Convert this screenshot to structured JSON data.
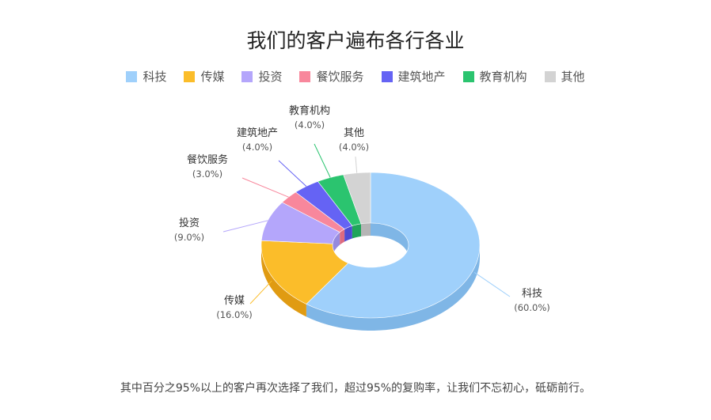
{
  "chart_data": {
    "type": "pie",
    "variant": "3d-donut",
    "title": "我们的客户遍布各行各业",
    "legend_position": "top",
    "slices": [
      {
        "label": "科技",
        "value": 60.0,
        "display": "(60.0%)",
        "color": "#9fd0fb",
        "side": "#7fb6e6"
      },
      {
        "label": "传媒",
        "value": 16.0,
        "display": "(16.0%)",
        "color": "#fbbd2a",
        "side": "#e09b12"
      },
      {
        "label": "投资",
        "value": 9.0,
        "display": "(9.0%)",
        "color": "#b4a6fb",
        "side": "#968ade"
      },
      {
        "label": "餐饮服务",
        "value": 3.0,
        "display": "(3.0%)",
        "color": "#f8879c",
        "side": "#dd6b80"
      },
      {
        "label": "建筑地产",
        "value": 4.0,
        "display": "(4.0%)",
        "color": "#6563f4",
        "side": "#4d4bd4"
      },
      {
        "label": "教育机构",
        "value": 4.0,
        "display": "(4.0%)",
        "color": "#2bc46f",
        "side": "#1fa55a"
      },
      {
        "label": "其他",
        "value": 4.0,
        "display": "(4.0%)",
        "color": "#d3d3d3",
        "side": "#b5b5b5"
      }
    ]
  },
  "caption": "其中百分之95%以上的客户再次选择了我们，超过95%的复购率，让我们不忘初心，砥砺前行。"
}
